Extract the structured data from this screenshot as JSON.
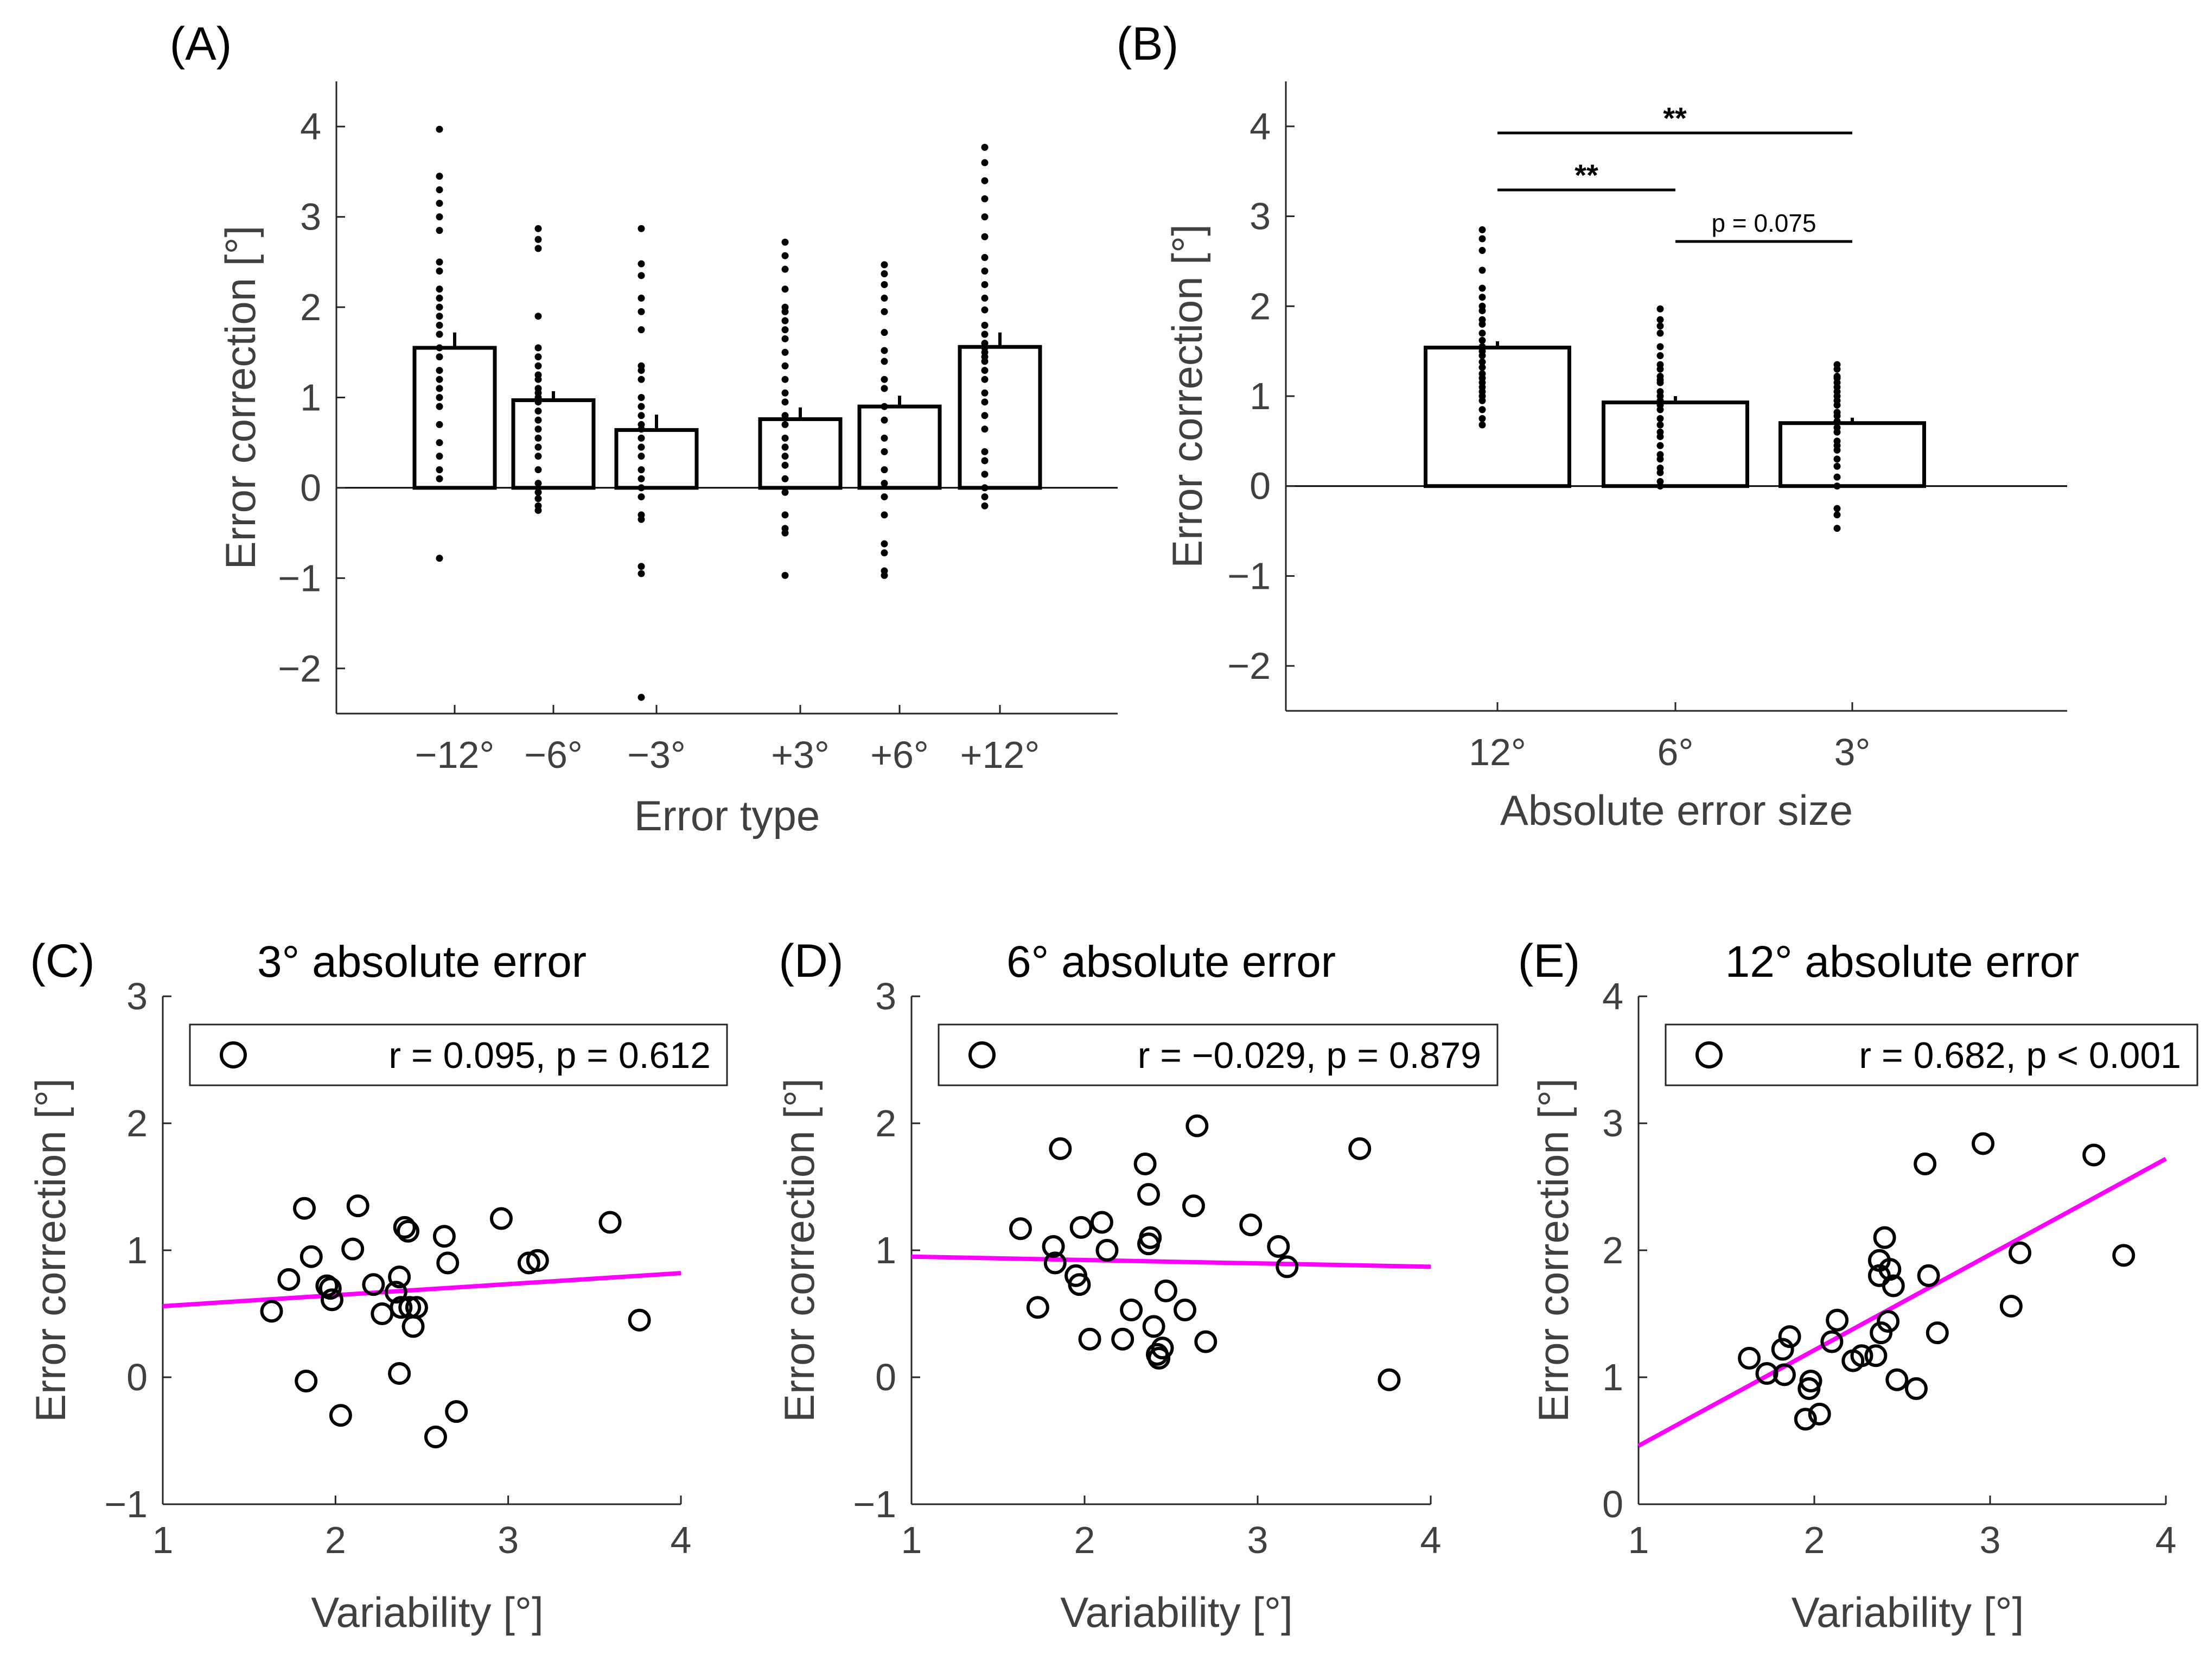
{
  "chart_data": [
    {
      "id": "A",
      "panel_label": "(A)",
      "type": "bar",
      "title": "",
      "xlabel": "Error type",
      "ylabel": "Error correction [°]",
      "ylim": [
        -2.5,
        4.5
      ],
      "yticks": [
        -2,
        -1,
        0,
        1,
        2,
        3,
        4
      ],
      "ytick_labels": [
        "−2",
        "−1",
        "0",
        "1",
        "2",
        "3",
        "4"
      ],
      "categories": [
        "−12°",
        "−6°",
        "−3°",
        "+3°",
        "+6°",
        "+12°"
      ],
      "values": [
        1.55,
        0.97,
        0.64,
        0.76,
        0.9,
        1.56
      ],
      "errors": [
        0.17,
        0.1,
        0.17,
        0.13,
        0.12,
        0.16
      ],
      "points": [
        [
          3.97,
          3.45,
          3.3,
          3.15,
          3.0,
          2.85,
          2.5,
          2.4,
          2.2,
          2.1,
          2.0,
          1.9,
          1.8,
          1.7,
          1.55,
          1.45,
          1.3,
          1.2,
          1.1,
          1.0,
          0.9,
          0.7,
          0.5,
          0.35,
          0.2,
          0.1,
          -0.78
        ],
        [
          2.87,
          2.75,
          2.65,
          1.9,
          1.55,
          1.45,
          1.35,
          1.25,
          1.2,
          1.1,
          1.05,
          1.0,
          0.95,
          0.85,
          0.75,
          0.65,
          0.55,
          0.45,
          0.35,
          0.2,
          0.05,
          -0.05,
          -0.12,
          -0.2,
          -0.25
        ],
        [
          2.87,
          2.48,
          2.35,
          2.1,
          1.95,
          1.75,
          1.35,
          1.3,
          1.2,
          1.0,
          0.9,
          0.8,
          0.7,
          0.65,
          0.55,
          0.45,
          0.35,
          0.2,
          0.1,
          0.0,
          -0.1,
          -0.3,
          -0.35,
          -0.87,
          -0.95,
          -2.32
        ],
        [
          2.72,
          2.57,
          2.42,
          2.2,
          2.0,
          1.95,
          1.85,
          1.75,
          1.65,
          1.5,
          1.35,
          1.2,
          1.05,
          0.95,
          0.8,
          0.7,
          0.55,
          0.45,
          0.35,
          0.25,
          0.1,
          -0.05,
          -0.3,
          -0.45,
          -0.5,
          -0.97
        ],
        [
          2.47,
          2.37,
          2.25,
          2.1,
          1.95,
          1.72,
          1.52,
          1.4,
          1.2,
          1.1,
          0.9,
          0.75,
          0.55,
          0.4,
          0.2,
          0.05,
          -0.1,
          -0.3,
          -0.62,
          -0.72,
          -0.92,
          -0.97
        ],
        [
          3.77,
          3.6,
          3.4,
          3.2,
          3.0,
          2.78,
          2.55,
          2.4,
          2.25,
          2.1,
          1.97,
          1.8,
          1.7,
          1.6,
          1.55,
          1.5,
          1.45,
          1.4,
          1.3,
          1.2,
          1.05,
          0.95,
          0.8,
          0.65,
          0.4,
          0.3,
          0.15,
          0.0,
          -0.1,
          -0.2
        ]
      ]
    },
    {
      "id": "B",
      "panel_label": "(B)",
      "type": "bar",
      "title": "",
      "xlabel": "Absolute error size",
      "ylabel": "Error correction [°]",
      "ylim": [
        -2.5,
        4.5
      ],
      "yticks": [
        -2,
        -1,
        0,
        1,
        2,
        3,
        4
      ],
      "ytick_labels": [
        "−2",
        "−1",
        "0",
        "1",
        "2",
        "3",
        "4"
      ],
      "categories": [
        "12°",
        "6°",
        "3°"
      ],
      "values": [
        1.54,
        0.93,
        0.7
      ],
      "errors": [
        0.07,
        0.07,
        0.06
      ],
      "points": [
        [
          2.85,
          2.75,
          2.62,
          2.4,
          2.2,
          2.1,
          2.0,
          1.95,
          1.85,
          1.8,
          1.7,
          1.62,
          1.55,
          1.5,
          1.45,
          1.38,
          1.32,
          1.25,
          1.2,
          1.15,
          1.1,
          1.05,
          1.0,
          0.95,
          0.85,
          0.75,
          0.68
        ],
        [
          1.97,
          1.85,
          1.78,
          1.7,
          1.55,
          1.45,
          1.35,
          1.3,
          1.22,
          1.18,
          1.15,
          1.05,
          1.0,
          0.95,
          0.9,
          0.85,
          0.75,
          0.68,
          0.6,
          0.55,
          0.45,
          0.35,
          0.3,
          0.2,
          0.15,
          0.05,
          0.0
        ],
        [
          1.35,
          1.3,
          1.22,
          1.2,
          1.15,
          1.1,
          1.05,
          1.0,
          0.95,
          0.9,
          0.82,
          0.78,
          0.72,
          0.65,
          0.6,
          0.5,
          0.45,
          0.4,
          0.3,
          0.22,
          0.1,
          0.0,
          -0.25,
          -0.32,
          -0.47
        ]
      ],
      "significance": [
        {
          "from": "12°",
          "to": "3°",
          "label": "**"
        },
        {
          "from": "12°",
          "to": "6°",
          "label": "**"
        },
        {
          "from": "6°",
          "to": "3°",
          "label": "p = 0.075"
        }
      ]
    },
    {
      "id": "C",
      "panel_label": "(C)",
      "type": "scatter",
      "title": "3° absolute error",
      "xlabel": "Variability [°]",
      "ylabel": "Error correction [°]",
      "xlim": [
        1,
        4
      ],
      "ylim": [
        -1,
        3
      ],
      "xticks": [
        1,
        2,
        3,
        4
      ],
      "yticks": [
        -1,
        0,
        1,
        2,
        3
      ],
      "ytick_labels": [
        "−1",
        "0",
        "1",
        "2",
        "3"
      ],
      "legend": "r = 0.095, p = 0.612",
      "x": [
        1.63,
        1.73,
        1.82,
        1.83,
        1.86,
        1.95,
        1.97,
        1.98,
        2.03,
        2.1,
        2.13,
        2.22,
        2.27,
        2.35,
        2.37,
        2.37,
        2.38,
        2.4,
        2.42,
        2.43,
        2.45,
        2.47,
        2.58,
        2.63,
        2.65,
        2.7,
        2.96,
        3.12,
        3.17,
        3.59,
        3.76
      ],
      "y": [
        0.52,
        0.77,
        1.33,
        -0.03,
        0.95,
        0.72,
        0.7,
        0.61,
        -0.3,
        1.01,
        1.35,
        0.73,
        0.5,
        0.67,
        0.79,
        0.03,
        0.55,
        1.18,
        1.15,
        0.55,
        0.4,
        0.55,
        -0.47,
        1.11,
        0.9,
        -0.27,
        1.25,
        0.9,
        0.92,
        1.22,
        0.45
      ],
      "fit": {
        "x": [
          1,
          4
        ],
        "y": [
          0.56,
          0.82
        ]
      }
    },
    {
      "id": "D",
      "panel_label": "(D)",
      "type": "scatter",
      "title": "6° absolute error",
      "xlabel": "Variability [°]",
      "ylabel": "Error correction [°]",
      "xlim": [
        1,
        4
      ],
      "ylim": [
        -1,
        3
      ],
      "xticks": [
        1,
        2,
        3,
        4
      ],
      "yticks": [
        -1,
        0,
        1,
        2,
        3
      ],
      "ytick_labels": [
        "−1",
        "0",
        "1",
        "2",
        "3"
      ],
      "legend": "r = −0.029, p = 0.879",
      "x": [
        1.63,
        1.73,
        1.82,
        1.83,
        1.86,
        1.95,
        1.97,
        1.98,
        2.03,
        2.1,
        2.13,
        2.22,
        2.27,
        2.35,
        2.37,
        2.37,
        2.38,
        2.4,
        2.42,
        2.43,
        2.45,
        2.47,
        2.58,
        2.63,
        2.65,
        2.7,
        2.96,
        3.12,
        3.17,
        3.59,
        3.76
      ],
      "y": [
        1.17,
        0.55,
        1.03,
        0.9,
        1.8,
        0.8,
        0.73,
        1.18,
        0.3,
        1.22,
        1.0,
        0.3,
        0.53,
        1.68,
        1.05,
        1.44,
        1.1,
        0.4,
        0.18,
        0.15,
        0.23,
        0.68,
        0.53,
        1.35,
        1.98,
        0.28,
        1.2,
        1.03,
        0.87,
        1.8,
        -0.02
      ],
      "fit": {
        "x": [
          1,
          4
        ],
        "y": [
          0.95,
          0.87
        ]
      }
    },
    {
      "id": "E",
      "panel_label": "(E)",
      "type": "scatter",
      "title": "12° absolute error",
      "xlabel": "Variability [°]",
      "ylabel": "Error correction [°]",
      "xlim": [
        1,
        4
      ],
      "ylim": [
        0,
        4
      ],
      "xticks": [
        1,
        2,
        3,
        4
      ],
      "yticks": [
        0,
        1,
        2,
        3,
        4
      ],
      "ytick_labels": [
        "0",
        "1",
        "2",
        "3",
        "4"
      ],
      "legend": "r = 0.682, p < 0.001",
      "x": [
        1.63,
        1.73,
        1.82,
        1.83,
        1.86,
        1.95,
        1.97,
        1.98,
        2.03,
        2.1,
        2.13,
        2.22,
        2.27,
        2.35,
        2.37,
        2.37,
        2.38,
        2.4,
        2.42,
        2.43,
        2.45,
        2.47,
        2.58,
        2.63,
        2.65,
        2.7,
        2.96,
        3.12,
        3.17,
        3.59,
        3.76
      ],
      "y": [
        1.15,
        1.03,
        1.22,
        1.02,
        1.32,
        0.67,
        0.91,
        0.97,
        0.71,
        1.28,
        1.45,
        1.13,
        1.17,
        1.17,
        1.92,
        1.8,
        1.35,
        2.1,
        1.44,
        1.85,
        1.72,
        0.98,
        0.91,
        2.68,
        1.8,
        1.35,
        2.84,
        1.56,
        1.98,
        2.75,
        1.96
      ],
      "fit": {
        "x": [
          1,
          4
        ],
        "y": [
          0.46,
          2.72
        ]
      }
    }
  ]
}
